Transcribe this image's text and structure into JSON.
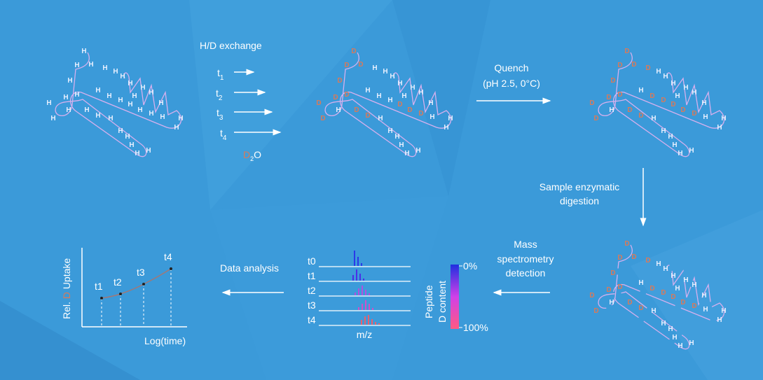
{
  "colors": {
    "background": "#3b9ad9",
    "chain": "#d6b0ee",
    "hydrogen": "#e8f0ff",
    "deuterium": "#d97a5a",
    "arrow": "#ffffff",
    "gradient_top": "#1f2fe0",
    "gradient_mid": "#d040e8",
    "gradient_bottom": "#ff5a82"
  },
  "exchange": {
    "title": "H/D exchange",
    "times": [
      "t",
      "t",
      "t",
      "t"
    ],
    "subs": [
      "1",
      "2",
      "3",
      "4"
    ],
    "reagent_d": "D",
    "reagent_sub": "2",
    "reagent_o": "O"
  },
  "quench": {
    "line1": "Quench",
    "line2": "(pH 2.5, 0°C)"
  },
  "digestion": {
    "line1": "Sample enzymatic",
    "line2": "digestion"
  },
  "ms": {
    "line1": "Mass",
    "line2": "spectrometry",
    "line3": "detection",
    "xlabel": "m/z",
    "rows": [
      "t0",
      "t1",
      "t2",
      "t3",
      "t4"
    ],
    "colorbar_title1": "Peptide",
    "colorbar_title2": "D content",
    "colorbar_top": "0%",
    "colorbar_bottom": "100%"
  },
  "analysis": {
    "label": "Data analysis",
    "xlabel": "Log(time)",
    "ylabel_pre": "Rel. ",
    "ylabel_d": "D",
    "ylabel_post": " Uptake",
    "points": [
      "t1",
      "t2",
      "t3",
      "t4"
    ]
  },
  "proteins": {
    "native": "HHHHHHHHHHHHHHHHHHHHHHHHHHHHHHHHHH",
    "exchanged": "DDDDDHDDHHHHHHHHHHHHHHHHHDDDDDHHHD",
    "quenched": "DDDDDHDDDHHHHHHHHHHHHHHDDDDDDDHHHD",
    "digested": "DDDDDHDDDHHHHHHHHHHHHHHDDDDDDDHHHD"
  }
}
